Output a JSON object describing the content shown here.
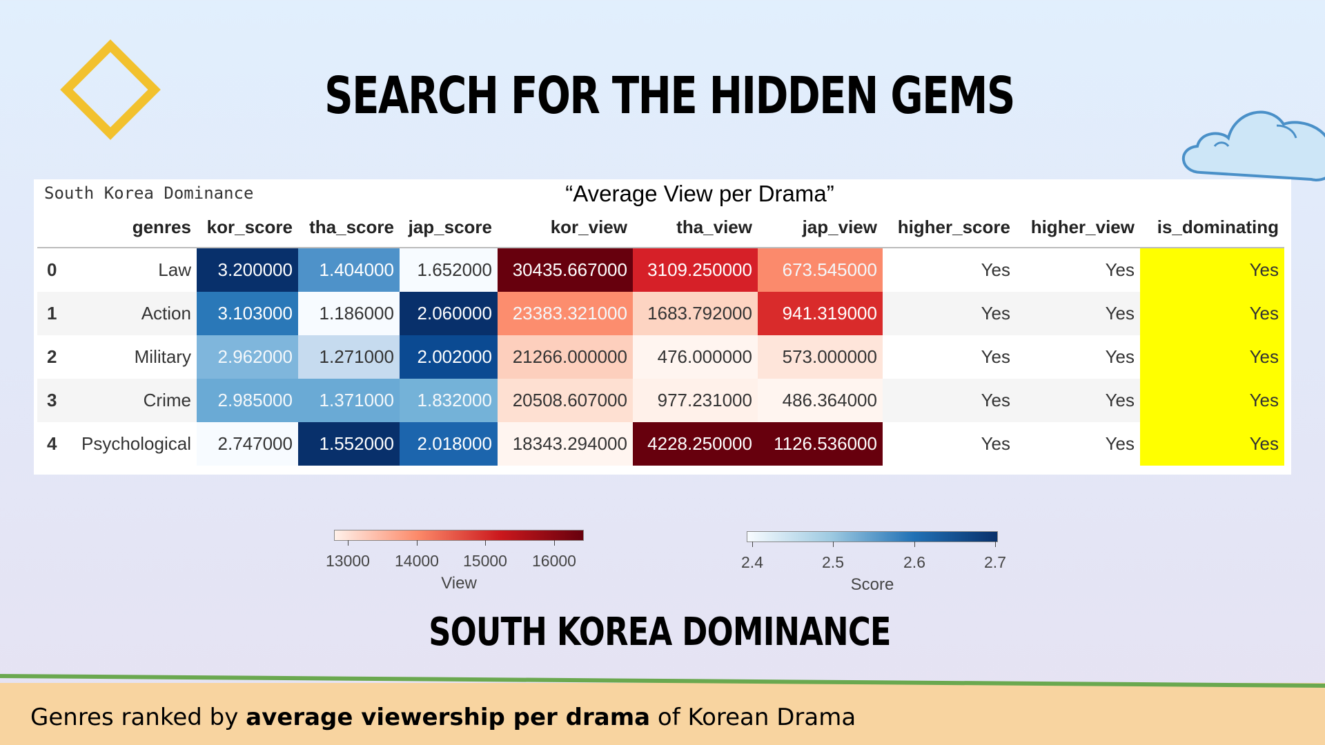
{
  "slide": {
    "title": "Search for the hidden gems",
    "section_title": "South Korea Dominance",
    "footer": {
      "prefix": "Genres ranked by ",
      "bold": "average viewership per drama",
      "suffix": " of Korean Drama"
    }
  },
  "table": {
    "caption": "South Korea Dominance",
    "subtitle": "“Average View per Drama”",
    "columns": [
      "genres",
      "kor_score",
      "tha_score",
      "jap_score",
      "kor_view",
      "tha_view",
      "jap_view",
      "higher_score",
      "higher_view",
      "is_dominating"
    ],
    "rows": [
      {
        "idx": "0",
        "cells": [
          "Law",
          "3.200000",
          "1.404000",
          "1.652000",
          "30435.667000",
          "3109.250000",
          "673.545000",
          "Yes",
          "Yes",
          "Yes"
        ]
      },
      {
        "idx": "1",
        "cells": [
          "Action",
          "3.103000",
          "1.186000",
          "2.060000",
          "23383.321000",
          "1683.792000",
          "941.319000",
          "Yes",
          "Yes",
          "Yes"
        ]
      },
      {
        "idx": "2",
        "cells": [
          "Military",
          "2.962000",
          "1.271000",
          "2.002000",
          "21266.000000",
          "476.000000",
          "573.000000",
          "Yes",
          "Yes",
          "Yes"
        ]
      },
      {
        "idx": "3",
        "cells": [
          "Crime",
          "2.985000",
          "1.371000",
          "1.832000",
          "20508.607000",
          "977.231000",
          "486.364000",
          "Yes",
          "Yes",
          "Yes"
        ]
      },
      {
        "idx": "4",
        "cells": [
          "Psychological",
          "2.747000",
          "1.552000",
          "2.018000",
          "18343.294000",
          "4228.250000",
          "1126.536000",
          "Yes",
          "Yes",
          "Yes"
        ]
      }
    ]
  },
  "colorbars": {
    "view": {
      "label": "View",
      "ticks": [
        "13000",
        "14000",
        "15000",
        "16000"
      ],
      "colors": [
        "#fff1ea",
        "#fc8a6a",
        "#cb181d",
        "#67000d"
      ]
    },
    "score": {
      "label": "Score",
      "ticks": [
        "2.4",
        "2.5",
        "2.6",
        "2.7"
      ],
      "colors": [
        "#f7fbff",
        "#9ecae1",
        "#2171b5",
        "#08306b"
      ]
    }
  },
  "colors": {
    "highlight": "#ffff00",
    "diamond": "#f2c12e",
    "cloud": "#cde6f7",
    "footer": "#f8d4a0",
    "footer_line": "#6aa84f"
  },
  "heatmap_colors": [
    [
      "#08306b",
      "#4e92c9",
      "#f7fbff",
      "#67000d",
      "#d62028",
      "#fb8a6c"
    ],
    [
      "#2a78b8",
      "#f7fbff",
      "#08306b",
      "#fc8d6e",
      "#fdd4c2",
      "#d92b2b"
    ],
    [
      "#7fb6dc",
      "#c6dbef",
      "#0b4a92",
      "#fdcfbd",
      "#fff5f0",
      "#fee5da"
    ],
    [
      "#6aaad5",
      "#6aaad5",
      "#74b2d8",
      "#fee0d2",
      "#fff1ea",
      "#fff5f0"
    ],
    [
      "#f7fbff",
      "#08306b",
      "#1c65ad",
      "#fff5f0",
      "#67000d",
      "#67000d"
    ]
  ]
}
